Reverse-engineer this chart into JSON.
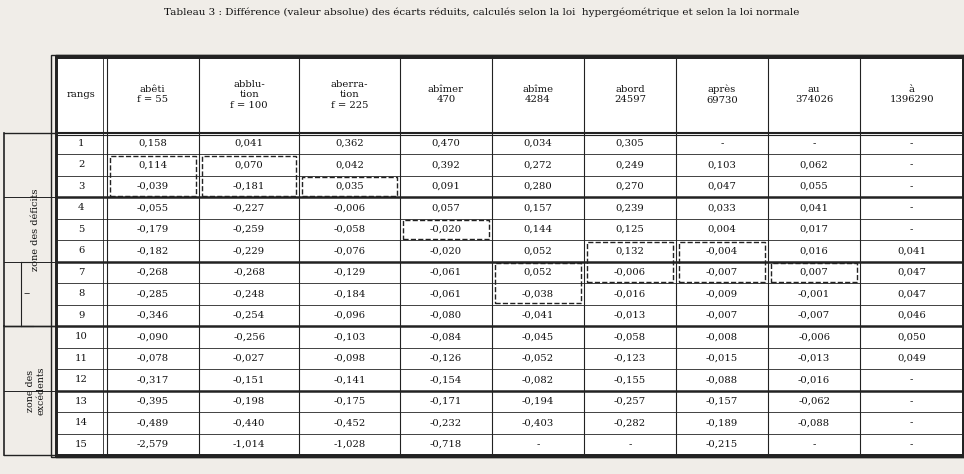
{
  "title": "Tableau 3 : Différence (valeur absolue) des écarts réduits, calculés selon la loi  hypergéométrique et selon la loi normale",
  "col_headers": [
    "rangs",
    "abêti\nf = 55",
    "abblu-\ntion\nf = 100",
    "aberra-\ntion\nf = 225",
    "abîmer\n470",
    "abîme\n4284",
    "abord\n24597",
    "après\n69730",
    "au\n374026",
    "à\n1396290"
  ],
  "rows": [
    [
      1,
      "0,158",
      "0,041",
      "0,362",
      "0,470",
      "0,034",
      "0,305",
      "-",
      "-",
      "-"
    ],
    [
      2,
      "0,114",
      "0,070",
      "0,042",
      "0,392",
      "0,272",
      "0,249",
      "0,103",
      "0,062",
      "-"
    ],
    [
      3,
      "-0,039",
      "-0,181",
      "0,035",
      "0,091",
      "0,280",
      "0,270",
      "0,047",
      "0,055",
      "-"
    ],
    [
      4,
      "-0,055",
      "-0,227",
      "-0,006",
      "0,057",
      "0,157",
      "0,239",
      "0,033",
      "0,041",
      "-"
    ],
    [
      5,
      "-0,179",
      "-0,259",
      "-0,058",
      "-0,020",
      "0,144",
      "0,125",
      "0,004",
      "0,017",
      "-"
    ],
    [
      6,
      "-0,182",
      "-0,229",
      "-0,076",
      "-0,020",
      "0,052",
      "0,132",
      "-0,004",
      "0,016",
      "0,041"
    ],
    [
      7,
      "-0,268",
      "-0,268",
      "-0,129",
      "-0,061",
      "0,052",
      "-0,006",
      "-0,007",
      "0,007",
      "0,047"
    ],
    [
      8,
      "-0,285",
      "-0,248",
      "-0,184",
      "-0,061",
      "-0,038",
      "-0,016",
      "-0,009",
      "-0,001",
      "0,047"
    ],
    [
      9,
      "-0,346",
      "-0,254",
      "-0,096",
      "-0,080",
      "-0,041",
      "-0,013",
      "-0,007",
      "-0,007",
      "0,046"
    ],
    [
      10,
      "-0,090",
      "-0,256",
      "-0,103",
      "-0,084",
      "-0,045",
      "-0,058",
      "-0,008",
      "-0,006",
      "0,050"
    ],
    [
      11,
      "-0,078",
      "-0,027",
      "-0,098",
      "-0,126",
      "-0,052",
      "-0,123",
      "-0,015",
      "-0,013",
      "0,049"
    ],
    [
      12,
      "-0,317",
      "-0,151",
      "-0,141",
      "-0,154",
      "-0,082",
      "-0,155",
      "-0,088",
      "-0,016",
      "-"
    ],
    [
      13,
      "-0,395",
      "-0,198",
      "-0,175",
      "-0,171",
      "-0,194",
      "-0,257",
      "-0,157",
      "-0,062",
      "-"
    ],
    [
      14,
      "-0,489",
      "-0,440",
      "-0,452",
      "-0,232",
      "-0,403",
      "-0,282",
      "-0,189",
      "-0,088",
      "-"
    ],
    [
      15,
      "-2,579",
      "-1,014",
      "-1,028",
      "-0,718",
      "-",
      "-",
      "-0,215",
      "-",
      "-"
    ]
  ],
  "section_rows": [
    2,
    5,
    8,
    11
  ],
  "bg_color": "#f0ede8",
  "text_color": "#111111",
  "line_color": "#222222"
}
